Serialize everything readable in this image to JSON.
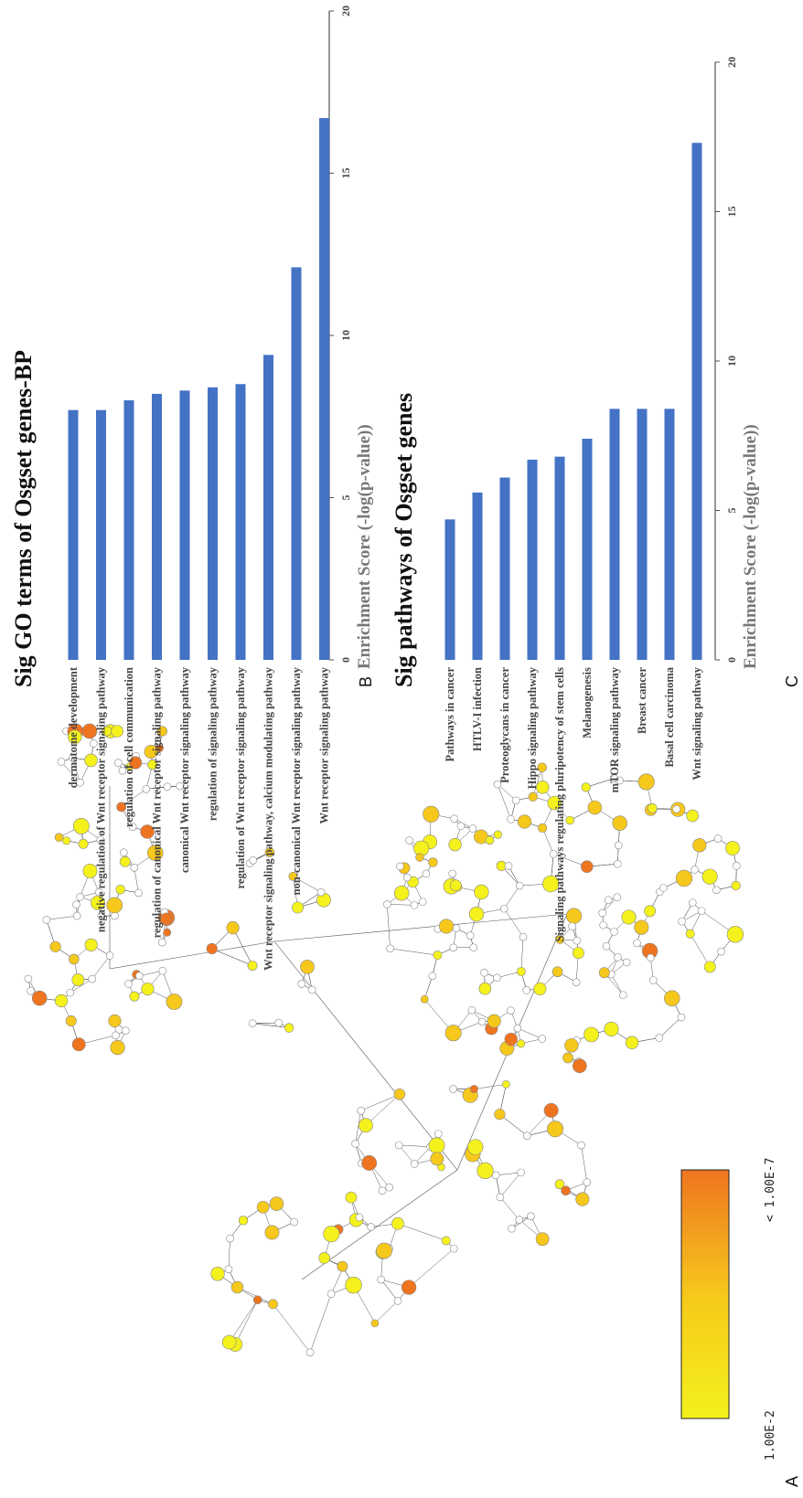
{
  "panel_letters": {
    "a": "A",
    "b": "B",
    "c": "C"
  },
  "network": {
    "legend_min": "1.00E-2",
    "legend_max": "< 1.00E-7",
    "colors": {
      "low": "#f4f11c",
      "mid": "#f6c81b",
      "high": "#ef7420",
      "none": "#ffffff"
    }
  },
  "chart_data": [
    {
      "type": "bar",
      "orientation": "horizontal",
      "title": "Sig GO terms of Osgset genes-BP",
      "xlabel": "Enrichment Score (-log(p-value))",
      "xlim": [
        0,
        20
      ],
      "ticks": [
        0,
        5,
        10,
        15,
        20
      ],
      "bar_color": "#4472c4",
      "categories": [
        "dermatome development",
        "negative regulation of Wnt receptor signaling pathway",
        "regulation of cell communication",
        "regulation of canonical Wnt receptor signaling pathway",
        "canonical Wnt receptor signaling pathway",
        "regulation of signaling pathway",
        "regulation of Wnt receptor signaling pathway",
        "Wnt receptor signaling pathway, calcium modulating pathway",
        "non-canonical Wnt receptor signaling pathway",
        "Wnt receptor signaling pathway"
      ],
      "values": [
        7.7,
        7.7,
        8.0,
        8.2,
        8.3,
        8.4,
        8.5,
        9.4,
        12.1,
        16.7
      ]
    },
    {
      "type": "bar",
      "orientation": "horizontal",
      "title": "Sig pathways of Osgset genes",
      "xlabel": "Enrichment Score (-log(p-value))",
      "xlim": [
        0,
        20
      ],
      "ticks": [
        0,
        5,
        10,
        15,
        20
      ],
      "bar_color": "#4472c4",
      "categories": [
        "Pathways in cancer",
        "HTLV-I infection",
        "Proteoglycans in cancer",
        "Hippo signaling pathway",
        "Signaling pathways regulating pluripotency of stem cells",
        "Melanogenesis",
        "mTOR signaling pathway",
        "Breast cancer",
        "Basal cell carcinoma",
        "Wnt signaling pathway"
      ],
      "values": [
        4.7,
        5.6,
        6.1,
        6.7,
        6.8,
        7.4,
        8.4,
        8.4,
        8.4,
        17.3
      ]
    }
  ]
}
